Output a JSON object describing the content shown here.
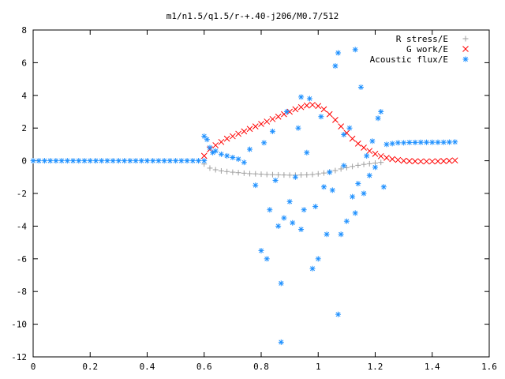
{
  "chart_data": {
    "type": "scatter",
    "title": "m1/n1.5/q1.5/r-+.40-j206/M0.7/512",
    "xlabel": "",
    "ylabel": "",
    "xlim": [
      0,
      1.6
    ],
    "ylim": [
      -12,
      8
    ],
    "x_ticks": [
      "0",
      "0.2",
      "0.4",
      "0.6",
      "0.8",
      "1",
      "1.2",
      "1.4",
      "1.6"
    ],
    "y_ticks": [
      "8",
      "6",
      "4",
      "2",
      "0",
      "-2",
      "-4",
      "-6",
      "-8",
      "-10",
      "-12"
    ],
    "x_tick_values": [
      0,
      0.2,
      0.4,
      0.6,
      0.8,
      1.0,
      1.2,
      1.4,
      1.6
    ],
    "y_tick_values": [
      8,
      6,
      4,
      2,
      0,
      -2,
      -4,
      -6,
      -8,
      -10,
      -12
    ],
    "grid": false,
    "legend_position": "top-right",
    "series": [
      {
        "name": "R stress/E",
        "marker": "+",
        "color": "#a0a0a0",
        "x": [
          0.6,
          0.62,
          0.64,
          0.66,
          0.68,
          0.7,
          0.72,
          0.74,
          0.76,
          0.78,
          0.8,
          0.82,
          0.84,
          0.86,
          0.88,
          0.9,
          0.92,
          0.94,
          0.96,
          0.98,
          1.0,
          1.02,
          1.04,
          1.06,
          1.08,
          1.1,
          1.12,
          1.14,
          1.16,
          1.18,
          1.2,
          1.22
        ],
        "y": [
          -0.2,
          -0.45,
          -0.55,
          -0.62,
          -0.66,
          -0.7,
          -0.73,
          -0.76,
          -0.79,
          -0.8,
          -0.82,
          -0.84,
          -0.85,
          -0.86,
          -0.87,
          -0.88,
          -0.88,
          -0.87,
          -0.86,
          -0.84,
          -0.8,
          -0.75,
          -0.68,
          -0.6,
          -0.5,
          -0.42,
          -0.35,
          -0.28,
          -0.22,
          -0.18,
          -0.14,
          -0.1
        ]
      },
      {
        "name": "G work/E",
        "marker": "x",
        "color": "#ff0000",
        "x": [
          0.6,
          0.62,
          0.64,
          0.66,
          0.68,
          0.7,
          0.72,
          0.74,
          0.76,
          0.78,
          0.8,
          0.82,
          0.84,
          0.86,
          0.88,
          0.9,
          0.92,
          0.94,
          0.96,
          0.98,
          1.0,
          1.02,
          1.04,
          1.06,
          1.08,
          1.1,
          1.12,
          1.14,
          1.16,
          1.18,
          1.2,
          1.22,
          1.24,
          1.26,
          1.28,
          1.3,
          1.32,
          1.34,
          1.36,
          1.38,
          1.4,
          1.42,
          1.44,
          1.46,
          1.48
        ],
        "y": [
          0.3,
          0.7,
          0.95,
          1.15,
          1.35,
          1.5,
          1.65,
          1.8,
          1.95,
          2.1,
          2.25,
          2.4,
          2.55,
          2.7,
          2.85,
          3.0,
          3.15,
          3.28,
          3.38,
          3.42,
          3.35,
          3.15,
          2.85,
          2.5,
          2.1,
          1.7,
          1.35,
          1.05,
          0.8,
          0.6,
          0.42,
          0.28,
          0.18,
          0.1,
          0.05,
          0.0,
          -0.02,
          -0.03,
          -0.04,
          -0.04,
          -0.04,
          -0.03,
          -0.02,
          0.0,
          0.02
        ]
      },
      {
        "name": "Acoustic flux/E",
        "marker": "*",
        "color": "#1e90ff",
        "x": [
          0.0,
          0.02,
          0.04,
          0.06,
          0.08,
          0.1,
          0.12,
          0.14,
          0.16,
          0.18,
          0.2,
          0.22,
          0.24,
          0.26,
          0.28,
          0.3,
          0.32,
          0.34,
          0.36,
          0.38,
          0.4,
          0.42,
          0.44,
          0.46,
          0.48,
          0.5,
          0.52,
          0.54,
          0.56,
          0.58,
          0.6,
          0.6,
          0.61,
          0.62,
          0.63,
          0.64,
          0.66,
          0.68,
          0.7,
          0.72,
          0.74,
          0.76,
          0.78,
          0.8,
          0.81,
          0.82,
          0.83,
          0.84,
          0.85,
          0.86,
          0.87,
          0.88,
          0.89,
          0.9,
          0.91,
          0.92,
          0.93,
          0.94,
          0.95,
          0.96,
          0.97,
          0.98,
          0.99,
          1.0,
          1.01,
          1.02,
          1.03,
          1.04,
          1.05,
          1.06,
          1.07,
          1.08,
          1.09,
          1.1,
          1.11,
          1.12,
          1.13,
          1.14,
          1.15,
          1.16,
          1.17,
          1.18,
          1.19,
          1.2,
          1.21,
          1.22,
          1.23,
          1.24,
          1.26,
          1.28,
          1.3,
          1.32,
          1.34,
          1.36,
          1.38,
          1.4,
          1.42,
          1.44,
          1.46,
          1.48,
          0.87,
          0.94,
          1.07,
          1.13,
          1.09
        ],
        "y": [
          0.0,
          0.0,
          0.0,
          0.0,
          0.0,
          0.0,
          0.0,
          0.0,
          0.0,
          0.0,
          0.0,
          0.0,
          0.0,
          0.0,
          0.0,
          0.0,
          0.0,
          0.0,
          0.0,
          0.0,
          0.0,
          0.0,
          0.0,
          0.0,
          0.0,
          0.0,
          0.0,
          0.0,
          0.0,
          0.0,
          0.0,
          1.5,
          1.3,
          0.8,
          0.5,
          0.6,
          0.4,
          0.3,
          0.2,
          0.1,
          -0.1,
          0.7,
          -1.5,
          -5.5,
          1.1,
          -6.0,
          -3.0,
          1.8,
          -1.2,
          -4.0,
          -7.5,
          -3.5,
          3.0,
          -2.5,
          -3.8,
          -1.0,
          2.0,
          -4.2,
          -3.0,
          0.5,
          3.8,
          -6.6,
          -2.8,
          -6.0,
          2.7,
          -1.6,
          -4.5,
          -0.7,
          -1.8,
          5.8,
          6.6,
          -4.5,
          1.6,
          -3.7,
          2.0,
          -2.2,
          -3.2,
          -1.4,
          4.5,
          -2.0,
          0.3,
          -0.9,
          1.2,
          -0.4,
          2.6,
          3.0,
          -1.6,
          1.0,
          1.05,
          1.1,
          1.1,
          1.12,
          1.12,
          1.13,
          1.13,
          1.13,
          1.13,
          1.13,
          1.14,
          1.15,
          -11.1,
          3.9,
          -9.4,
          6.8,
          -0.3
        ]
      }
    ]
  }
}
